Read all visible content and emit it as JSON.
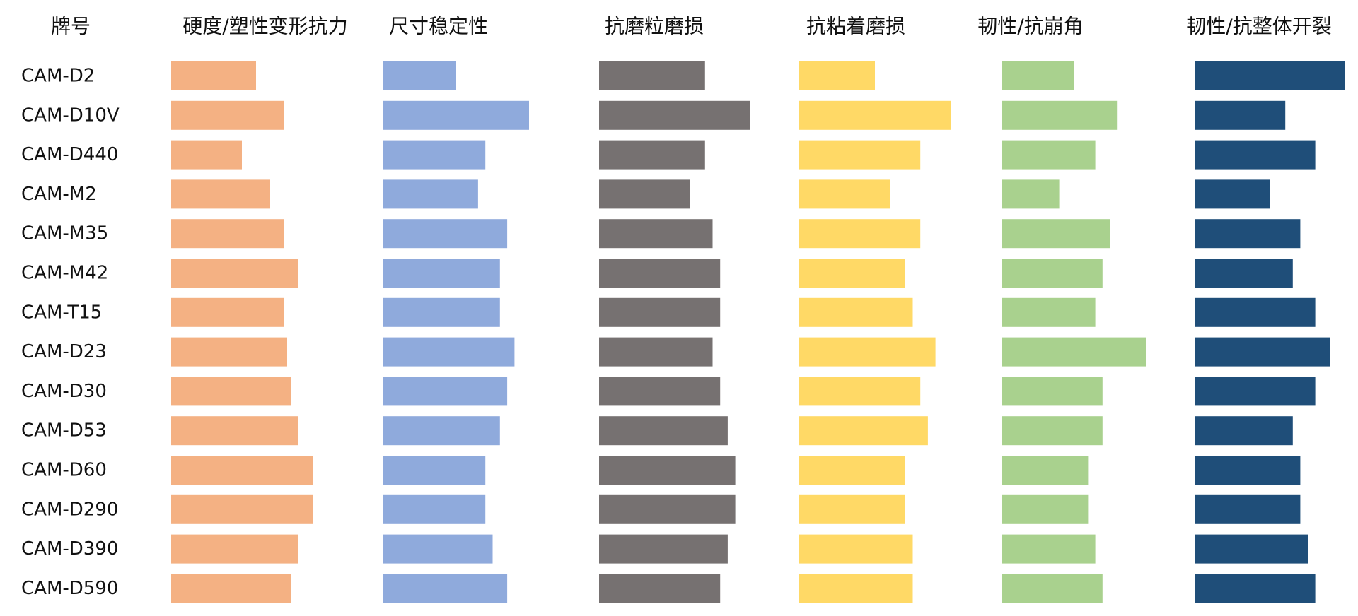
{
  "chart_data": {
    "type": "bar",
    "orientation": "horizontal",
    "layout": "small-multiples",
    "row_header": "牌号",
    "categories": [
      "CAM-D2",
      "CAM-D10V",
      "CAM-D440",
      "CAM-M2",
      "CAM-M35",
      "CAM-M42",
      "CAM-T15",
      "CAM-D23",
      "CAM-D30",
      "CAM-D53",
      "CAM-D60",
      "CAM-D290",
      "CAM-D390",
      "CAM-D590"
    ],
    "xlim": [
      0,
      10
    ],
    "grid": false,
    "legend": "none",
    "series": [
      {
        "name": "硬度/塑性变形抗力",
        "color": "#F4B183",
        "values": [
          6,
          8,
          5,
          7,
          8,
          9,
          8,
          8.2,
          8.5,
          9,
          10,
          10,
          9,
          8.5
        ]
      },
      {
        "name": "尺寸稳定性",
        "color": "#8FAADC",
        "values": [
          5,
          10,
          7,
          6.5,
          8.5,
          8,
          8,
          9,
          8.5,
          8,
          7,
          7,
          7.5,
          8.5
        ]
      },
      {
        "name": "抗磨粒磨损",
        "color": "#767171",
        "values": [
          7,
          10,
          7,
          6,
          7.5,
          8,
          8,
          7.5,
          8,
          8.5,
          9,
          9,
          8.5,
          8
        ]
      },
      {
        "name": "抗粘着磨损",
        "color": "#FFD966",
        "values": [
          5,
          10,
          8,
          6,
          8,
          7,
          7.5,
          9,
          8,
          8.5,
          7,
          7,
          7.5,
          7.5
        ]
      },
      {
        "name": "韧性/抗崩角",
        "color": "#A9D18E",
        "values": [
          5,
          8,
          6.5,
          4,
          7.5,
          7,
          6.5,
          10,
          7,
          7,
          6,
          6,
          6.5,
          7
        ]
      },
      {
        "name": "韧性/抗整体开裂",
        "color": "#1F4E79",
        "values": [
          10,
          6,
          8,
          5,
          7,
          6.5,
          8,
          9,
          8,
          6.5,
          7,
          7,
          7.5,
          8
        ]
      }
    ]
  }
}
